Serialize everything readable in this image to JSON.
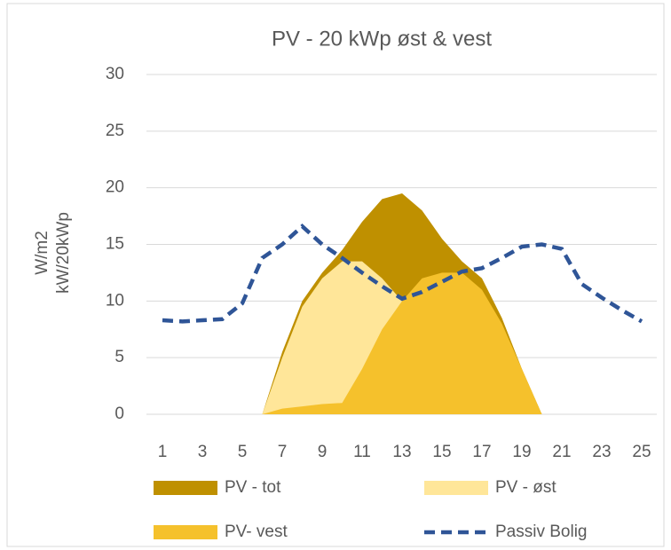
{
  "chart_data": {
    "type": "area",
    "title": "PV -  20 kWp øst & vest",
    "y_label": [
      "W/m2",
      "kW/20kWp"
    ],
    "categories": [
      1,
      null,
      3,
      null,
      5,
      null,
      7,
      null,
      9,
      null,
      11,
      null,
      13,
      null,
      15,
      null,
      17,
      null,
      19,
      null,
      21,
      null,
      23,
      null,
      25
    ],
    "ylim": [
      0,
      30
    ],
    "yticks": [
      0,
      5,
      10,
      15,
      20,
      25,
      30
    ],
    "grid": true,
    "legend": "bottom",
    "series": [
      {
        "name": "PV - tot",
        "type": "area",
        "color": "#bf9000",
        "values": [
          null,
          null,
          null,
          null,
          null,
          0,
          5.5,
          10,
          12.5,
          14.5,
          17,
          19,
          19.5,
          18,
          15.5,
          13.5,
          12,
          8.5,
          4,
          0,
          null,
          null,
          null,
          null,
          null
        ]
      },
      {
        "name": "PV - øst",
        "type": "area",
        "color": "#ffe699",
        "values": [
          null,
          null,
          null,
          null,
          null,
          0,
          5,
          9.5,
          12,
          13.5,
          13.5,
          12,
          10,
          6,
          3,
          1,
          0.8,
          0.5,
          0.2,
          0,
          null,
          null,
          null,
          null,
          null
        ]
      },
      {
        "name": "PV- vest",
        "type": "area",
        "color": "#f5c12c",
        "values": [
          null,
          null,
          null,
          null,
          null,
          0,
          0.5,
          0.7,
          0.9,
          1,
          4,
          7.5,
          10,
          12,
          12.5,
          12.5,
          11,
          8,
          4,
          0,
          null,
          null,
          null,
          null,
          null
        ]
      },
      {
        "name": "Passiv Bolig",
        "type": "line",
        "dashed": true,
        "color": "#2f5597",
        "values": [
          8.3,
          8.2,
          8.3,
          8.4,
          9.8,
          13.8,
          15,
          16.6,
          15,
          13.8,
          12.5,
          11.3,
          10.2,
          10.8,
          11.7,
          12.6,
          12.9,
          13.8,
          14.8,
          15,
          14.6,
          11.5,
          10.3,
          9.2,
          8.2
        ]
      }
    ]
  }
}
